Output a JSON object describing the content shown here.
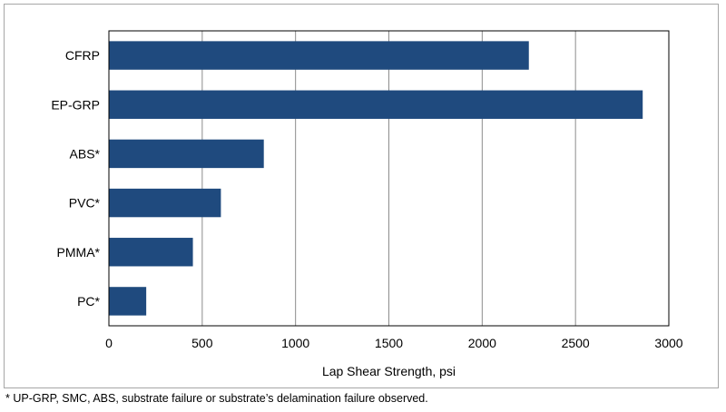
{
  "chart_data": {
    "type": "bar",
    "orientation": "horizontal",
    "categories": [
      "CFRP",
      "EP-GRP",
      "ABS*",
      "PVC*",
      "PMMA*",
      "PC*"
    ],
    "values": [
      2250,
      2860,
      830,
      600,
      450,
      200
    ],
    "title": "",
    "xlabel": "Lap Shear Strength, psi",
    "ylabel": "",
    "xlim": [
      0,
      3000
    ],
    "xticks": [
      "0",
      "500",
      "1000",
      "1500",
      "2000",
      "2500",
      "3000"
    ],
    "grid": "vertical",
    "bar_color": "#1f4a7e",
    "grid_color": "#8c8c8c"
  },
  "footnote": "* UP-GRP, SMC, ABS, substrate failure or substrate’s delamination failure observed."
}
